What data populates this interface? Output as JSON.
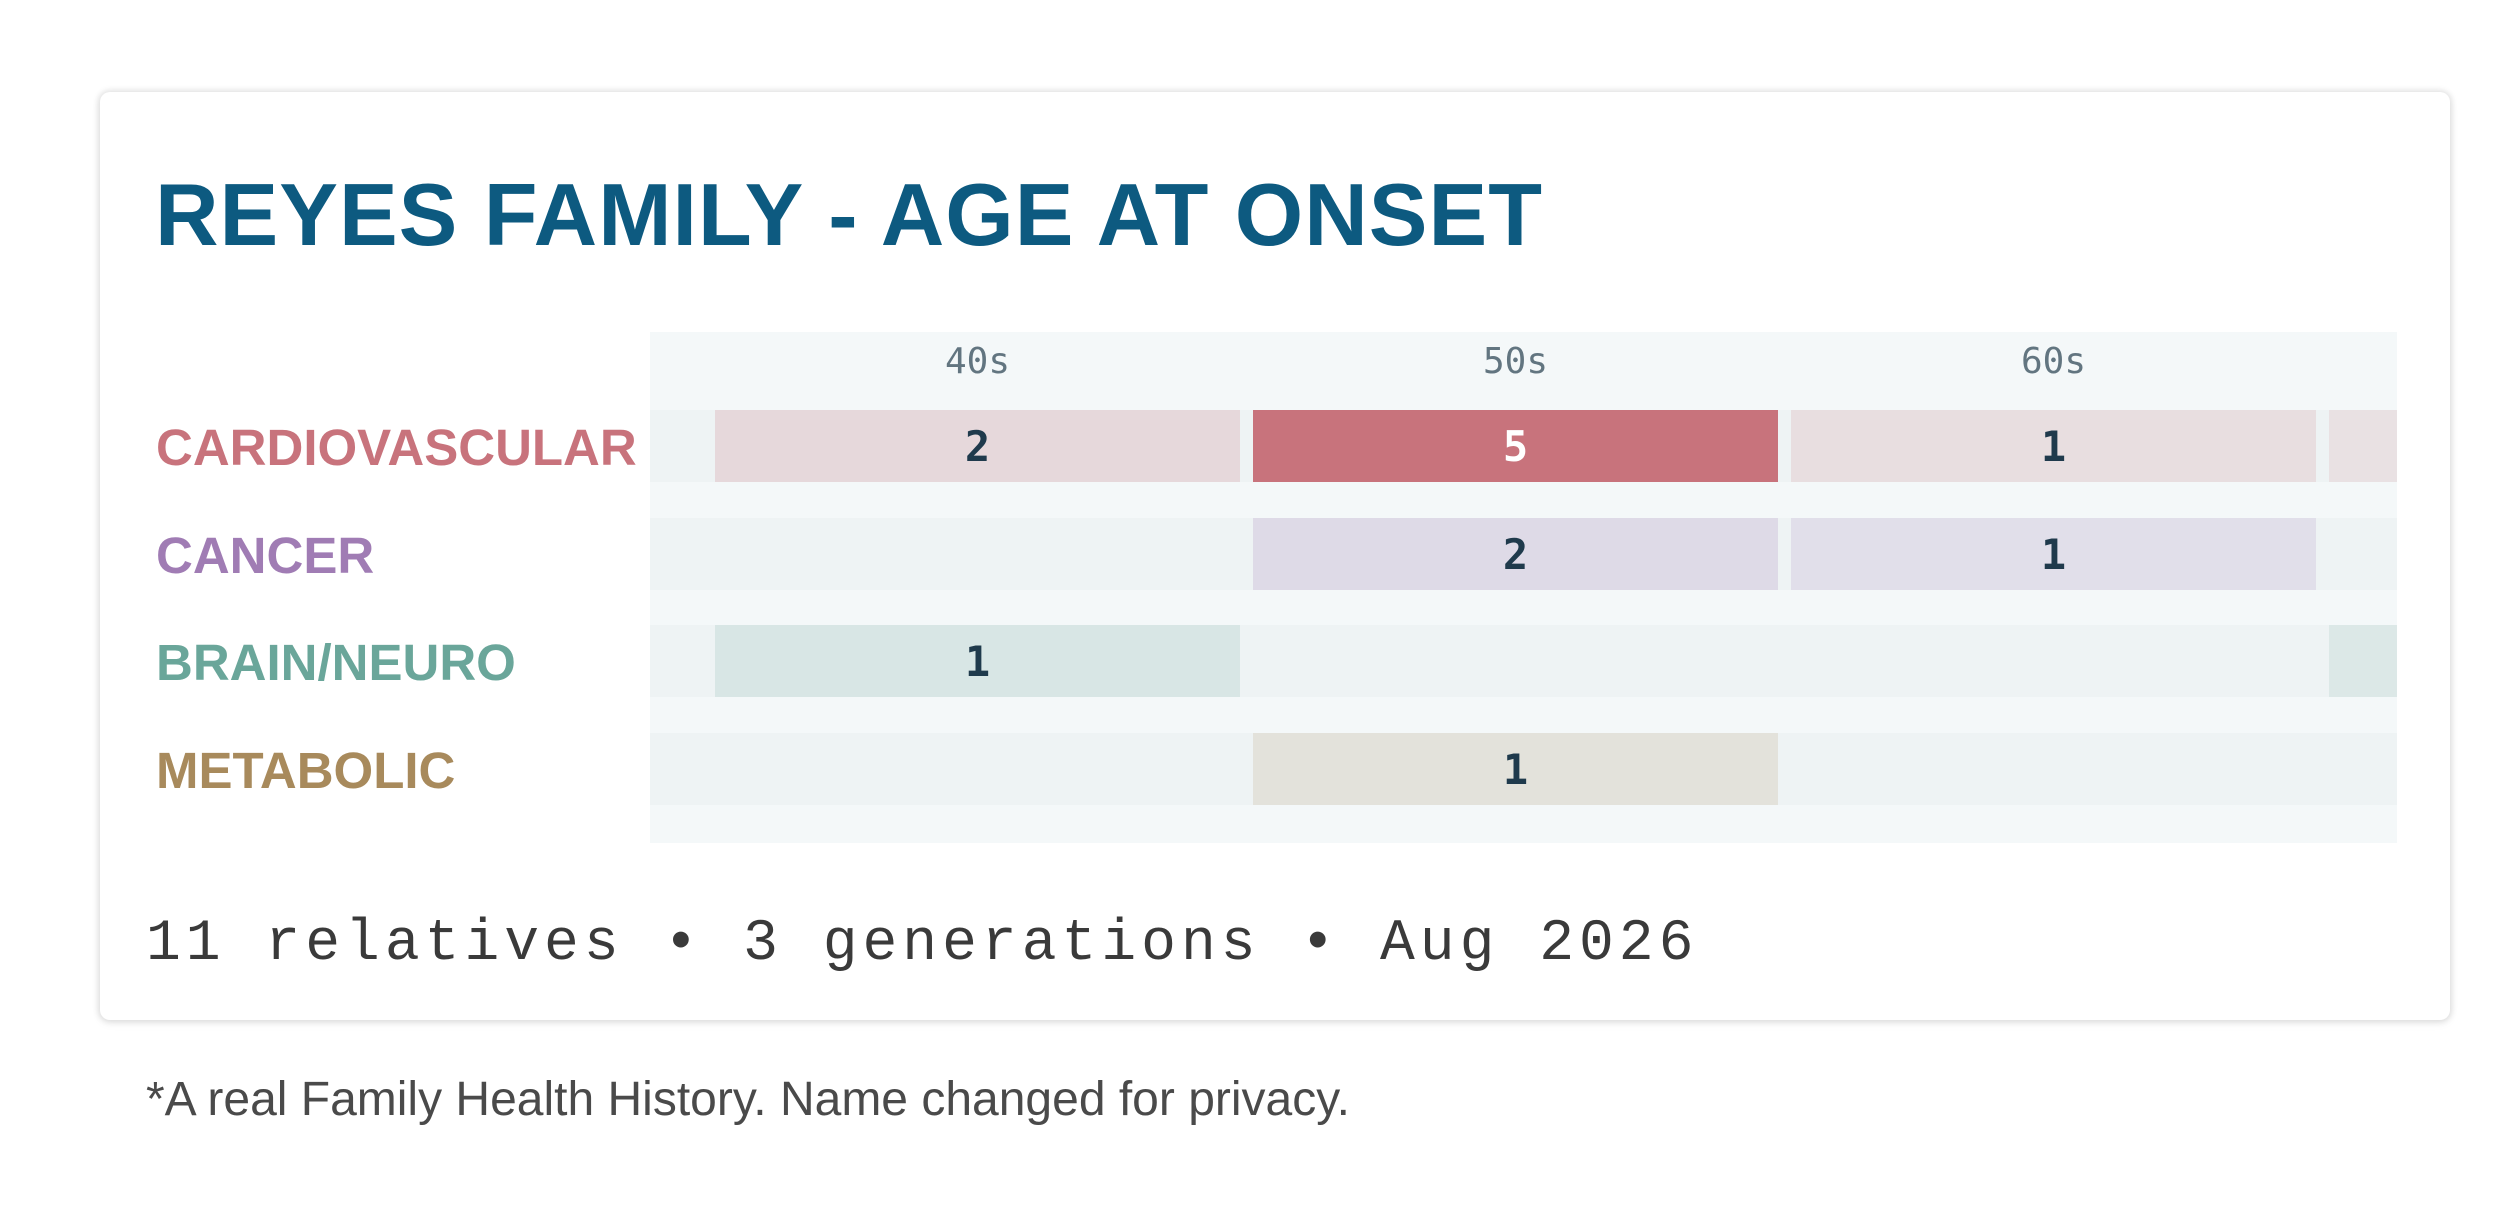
{
  "card": {
    "title": "REYES FAMILY - AGE AT ONSET",
    "footer": "11 relatives • 3 generations • Aug 2026"
  },
  "caption": "*A real Family Health History. Name changed for privacy.",
  "chart_data": {
    "type": "heatmap",
    "title": "REYES FAMILY - AGE AT ONSET",
    "columns": [
      "40s",
      "50s",
      "60s"
    ],
    "rows": [
      {
        "label": "CARDIOVASCULAR",
        "color": "#c8737c",
        "values": [
          2,
          5,
          1
        ]
      },
      {
        "label": "CANCER",
        "color": "#a07cb4",
        "values": [
          null,
          2,
          1
        ]
      },
      {
        "label": "BRAIN/NEURO",
        "color": "#6aa69a",
        "values": [
          1,
          null,
          null
        ]
      },
      {
        "label": "METABOLIC",
        "color": "#a88a5c",
        "values": [
          null,
          1,
          null
        ]
      }
    ],
    "max_value": 5,
    "empty_cell_color": "#eef3f4",
    "grid": false,
    "legend": "none"
  }
}
